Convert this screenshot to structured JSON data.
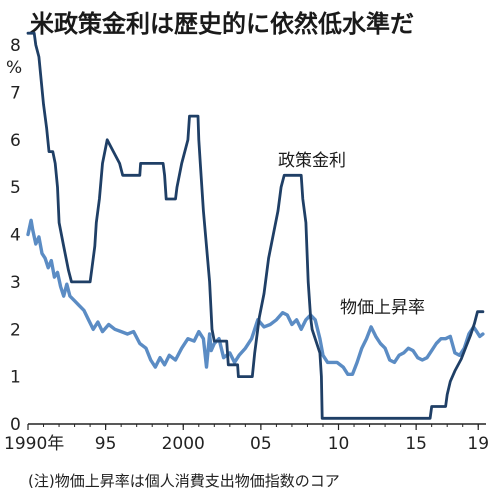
{
  "chart_data": {
    "type": "line",
    "title": "米政策金利は歴史的に依然低水準だ",
    "ylabel": "%",
    "ylim": [
      0,
      8
    ],
    "xlim": [
      1990,
      2019.5
    ],
    "yticks": [
      0,
      1,
      2,
      3,
      4,
      5,
      6,
      7,
      8
    ],
    "xticks": [
      {
        "value": 1990,
        "label": "1990年"
      },
      {
        "value": 1995,
        "label": "95"
      },
      {
        "value": 2000,
        "label": "2000"
      },
      {
        "value": 2005,
        "label": "05"
      },
      {
        "value": 2010,
        "label": "10"
      },
      {
        "value": 2015,
        "label": "15"
      },
      {
        "value": 2019,
        "label": "19"
      }
    ],
    "grid": false,
    "note": "(注)物価上昇率は個人消費支出物価指数のコア",
    "series": [
      {
        "name": "政策金利",
        "color": "#1f3f66",
        "points": [
          [
            1990.0,
            8.25
          ],
          [
            1990.4,
            8.25
          ],
          [
            1990.5,
            8.0
          ],
          [
            1990.7,
            7.75
          ],
          [
            1990.85,
            7.25
          ],
          [
            1991.0,
            6.75
          ],
          [
            1991.2,
            6.25
          ],
          [
            1991.35,
            5.75
          ],
          [
            1991.6,
            5.75
          ],
          [
            1991.75,
            5.5
          ],
          [
            1991.9,
            5.0
          ],
          [
            1992.0,
            4.25
          ],
          [
            1992.3,
            3.75
          ],
          [
            1992.6,
            3.25
          ],
          [
            1992.8,
            3.0
          ],
          [
            1994.0,
            3.0
          ],
          [
            1994.1,
            3.25
          ],
          [
            1994.3,
            3.75
          ],
          [
            1994.4,
            4.25
          ],
          [
            1994.6,
            4.75
          ],
          [
            1994.8,
            5.5
          ],
          [
            1995.1,
            6.0
          ],
          [
            1995.5,
            5.75
          ],
          [
            1995.9,
            5.5
          ],
          [
            1996.1,
            5.25
          ],
          [
            1997.2,
            5.25
          ],
          [
            1997.25,
            5.5
          ],
          [
            1998.7,
            5.5
          ],
          [
            1998.8,
            5.25
          ],
          [
            1998.9,
            4.75
          ],
          [
            1999.5,
            4.75
          ],
          [
            1999.6,
            5.0
          ],
          [
            1999.9,
            5.5
          ],
          [
            2000.1,
            5.75
          ],
          [
            2000.3,
            6.0
          ],
          [
            2000.4,
            6.5
          ],
          [
            2000.95,
            6.5
          ],
          [
            2001.0,
            6.0
          ],
          [
            2001.1,
            5.5
          ],
          [
            2001.3,
            4.5
          ],
          [
            2001.5,
            3.75
          ],
          [
            2001.7,
            3.0
          ],
          [
            2001.85,
            2.0
          ],
          [
            2002.0,
            1.75
          ],
          [
            2002.8,
            1.75
          ],
          [
            2002.9,
            1.25
          ],
          [
            2003.5,
            1.25
          ],
          [
            2003.55,
            1.0
          ],
          [
            2004.45,
            1.0
          ],
          [
            2004.6,
            1.5
          ],
          [
            2004.9,
            2.25
          ],
          [
            2005.2,
            2.75
          ],
          [
            2005.5,
            3.5
          ],
          [
            2005.8,
            4.0
          ],
          [
            2006.1,
            4.5
          ],
          [
            2006.3,
            5.0
          ],
          [
            2006.5,
            5.25
          ],
          [
            2007.6,
            5.25
          ],
          [
            2007.7,
            4.75
          ],
          [
            2007.9,
            4.25
          ],
          [
            2008.05,
            3.0
          ],
          [
            2008.2,
            2.25
          ],
          [
            2008.3,
            2.0
          ],
          [
            2008.8,
            1.5
          ],
          [
            2008.9,
            1.0
          ],
          [
            2008.95,
            0.12
          ],
          [
            2015.9,
            0.12
          ],
          [
            2016.0,
            0.37
          ],
          [
            2016.9,
            0.37
          ],
          [
            2017.0,
            0.62
          ],
          [
            2017.2,
            0.9
          ],
          [
            2017.5,
            1.12
          ],
          [
            2017.9,
            1.37
          ],
          [
            2018.2,
            1.62
          ],
          [
            2018.5,
            1.87
          ],
          [
            2018.75,
            2.12
          ],
          [
            2018.95,
            2.37
          ],
          [
            2019.2,
            2.37
          ],
          [
            2019.3,
            2.37
          ]
        ]
      },
      {
        "name": "物価上昇率",
        "color": "#5b8cc4",
        "points": [
          [
            1990.0,
            4.0
          ],
          [
            1990.2,
            4.3
          ],
          [
            1990.3,
            4.1
          ],
          [
            1990.5,
            3.8
          ],
          [
            1990.7,
            3.95
          ],
          [
            1990.9,
            3.6
          ],
          [
            1991.1,
            3.5
          ],
          [
            1991.3,
            3.3
          ],
          [
            1991.5,
            3.45
          ],
          [
            1991.7,
            3.1
          ],
          [
            1991.9,
            3.2
          ],
          [
            1992.1,
            2.9
          ],
          [
            1992.3,
            2.7
          ],
          [
            1992.5,
            2.95
          ],
          [
            1992.7,
            2.7
          ],
          [
            1993.0,
            2.6
          ],
          [
            1993.3,
            2.5
          ],
          [
            1993.6,
            2.4
          ],
          [
            1993.9,
            2.2
          ],
          [
            1994.2,
            2.0
          ],
          [
            1994.5,
            2.15
          ],
          [
            1994.8,
            1.95
          ],
          [
            1995.2,
            2.1
          ],
          [
            1995.6,
            2.0
          ],
          [
            1996.0,
            1.95
          ],
          [
            1996.4,
            1.9
          ],
          [
            1996.8,
            1.95
          ],
          [
            1997.2,
            1.7
          ],
          [
            1997.6,
            1.6
          ],
          [
            1997.9,
            1.35
          ],
          [
            1998.2,
            1.2
          ],
          [
            1998.5,
            1.4
          ],
          [
            1998.8,
            1.25
          ],
          [
            1999.1,
            1.45
          ],
          [
            1999.5,
            1.35
          ],
          [
            1999.9,
            1.6
          ],
          [
            2000.3,
            1.8
          ],
          [
            2000.7,
            1.75
          ],
          [
            2001.0,
            1.95
          ],
          [
            2001.3,
            1.8
          ],
          [
            2001.5,
            1.2
          ],
          [
            2001.7,
            1.9
          ],
          [
            2001.8,
            1.55
          ],
          [
            2002.0,
            1.7
          ],
          [
            2002.3,
            1.8
          ],
          [
            2002.6,
            1.4
          ],
          [
            2003.0,
            1.5
          ],
          [
            2003.3,
            1.3
          ],
          [
            2003.6,
            1.45
          ],
          [
            2004.0,
            1.6
          ],
          [
            2004.4,
            1.8
          ],
          [
            2004.8,
            2.2
          ],
          [
            2005.2,
            2.05
          ],
          [
            2005.6,
            2.1
          ],
          [
            2006.0,
            2.2
          ],
          [
            2006.4,
            2.35
          ],
          [
            2006.7,
            2.3
          ],
          [
            2007.0,
            2.1
          ],
          [
            2007.3,
            2.2
          ],
          [
            2007.6,
            2.0
          ],
          [
            2007.9,
            2.2
          ],
          [
            2008.2,
            2.3
          ],
          [
            2008.5,
            2.2
          ],
          [
            2008.8,
            1.8
          ],
          [
            2009.0,
            1.45
          ],
          [
            2009.3,
            1.3
          ],
          [
            2009.6,
            1.3
          ],
          [
            2009.9,
            1.3
          ],
          [
            2010.3,
            1.2
          ],
          [
            2010.6,
            1.05
          ],
          [
            2010.9,
            1.05
          ],
          [
            2011.2,
            1.3
          ],
          [
            2011.5,
            1.6
          ],
          [
            2011.8,
            1.8
          ],
          [
            2012.1,
            2.05
          ],
          [
            2012.4,
            1.85
          ],
          [
            2012.7,
            1.7
          ],
          [
            2013.0,
            1.6
          ],
          [
            2013.3,
            1.35
          ],
          [
            2013.6,
            1.3
          ],
          [
            2013.9,
            1.45
          ],
          [
            2014.2,
            1.5
          ],
          [
            2014.5,
            1.6
          ],
          [
            2014.8,
            1.55
          ],
          [
            2015.1,
            1.4
          ],
          [
            2015.4,
            1.35
          ],
          [
            2015.7,
            1.4
          ],
          [
            2016.0,
            1.55
          ],
          [
            2016.3,
            1.7
          ],
          [
            2016.6,
            1.8
          ],
          [
            2016.9,
            1.8
          ],
          [
            2017.2,
            1.85
          ],
          [
            2017.5,
            1.5
          ],
          [
            2017.8,
            1.45
          ],
          [
            2018.1,
            1.6
          ],
          [
            2018.4,
            1.9
          ],
          [
            2018.7,
            2.05
          ],
          [
            2018.9,
            1.95
          ],
          [
            2019.1,
            1.85
          ],
          [
            2019.3,
            1.9
          ]
        ]
      }
    ]
  }
}
